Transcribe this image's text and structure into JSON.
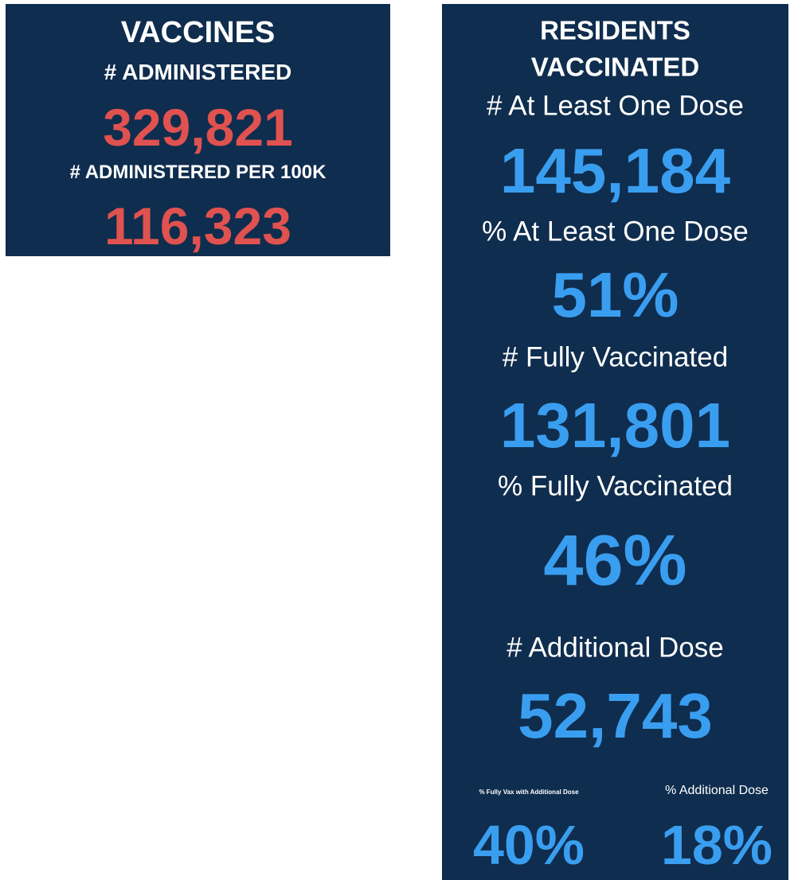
{
  "vaccines": {
    "title": "VACCINES",
    "items": [
      {
        "label": "# ADMINISTERED",
        "value": "329,821"
      },
      {
        "label": "# ADMINISTERED PER 100K",
        "value": "116,323"
      }
    ]
  },
  "residents": {
    "title_lines": [
      "RESIDENTS",
      "VACCINATED"
    ],
    "items": [
      {
        "label": "# At Least One Dose",
        "value": "145,184"
      },
      {
        "label": "% At Least One Dose",
        "value": "51%"
      },
      {
        "label": "# Fully Vaccinated",
        "value": "131,801"
      },
      {
        "label": "% Fully Vaccinated",
        "value": "46%"
      },
      {
        "label": "# Additional Dose",
        "value": "52,743"
      }
    ],
    "bottom": [
      {
        "label": "% Fully Vax with Additional Dose",
        "value": "40%"
      },
      {
        "label": "% Additional Dose",
        "value": "18%"
      }
    ]
  }
}
